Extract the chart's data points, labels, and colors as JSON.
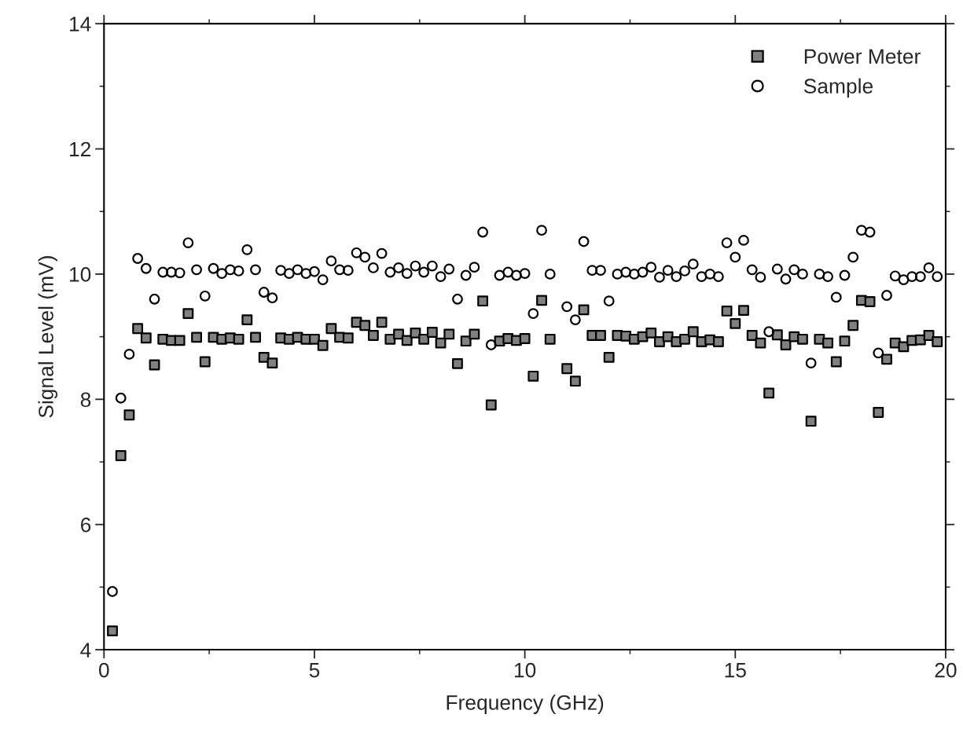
{
  "chart_data": {
    "type": "scatter",
    "xlabel": "Frequency (GHz)",
    "ylabel": "Signal Level (mV)",
    "x": [
      0.2,
      0.4,
      0.6,
      0.8,
      1.0,
      1.2,
      1.4,
      1.6,
      1.8,
      2.0,
      2.2,
      2.4,
      2.6,
      2.8,
      3.0,
      3.2,
      3.4,
      3.6,
      3.8,
      4.0,
      4.2,
      4.4,
      4.6,
      4.8,
      5.0,
      5.2,
      5.4,
      5.6,
      5.8,
      6.0,
      6.2,
      6.4,
      6.6,
      6.8,
      7.0,
      7.2,
      7.4,
      7.6,
      7.8,
      8.0,
      8.2,
      8.4,
      8.6,
      8.8,
      9.0,
      9.2,
      9.4,
      9.6,
      9.8,
      10.0,
      10.2,
      10.4,
      10.6,
      10.8,
      11.0,
      11.2,
      11.4,
      11.6,
      11.8,
      12.0,
      12.2,
      12.4,
      12.6,
      12.8,
      13.0,
      13.2,
      13.4,
      13.6,
      13.8,
      14.0,
      14.2,
      14.4,
      14.6,
      14.8,
      15.0,
      15.2,
      15.4,
      15.6,
      15.8,
      16.0,
      16.2,
      16.4,
      16.6,
      16.8,
      17.0,
      17.2,
      17.4,
      17.6,
      17.8,
      18.0,
      18.2,
      18.4,
      18.6,
      18.8,
      19.0,
      19.2,
      19.4,
      19.6,
      19.8
    ],
    "series": [
      {
        "name": "Power Meter",
        "color": "#808080",
        "marker": "square",
        "values": [
          4.3,
          7.1,
          7.75,
          9.13,
          8.98,
          8.55,
          8.96,
          8.94,
          8.94,
          9.37,
          8.99,
          8.6,
          8.99,
          8.96,
          8.98,
          8.96,
          9.27,
          8.99,
          8.67,
          8.58,
          8.98,
          8.96,
          8.99,
          8.96,
          8.96,
          8.86,
          9.13,
          8.99,
          8.98,
          9.23,
          9.18,
          9.02,
          9.23,
          8.96,
          9.04,
          8.94,
          9.06,
          8.96,
          9.07,
          8.9,
          9.04,
          8.57,
          8.93,
          9.04,
          9.57,
          7.91,
          8.93,
          8.97,
          8.94,
          8.97,
          8.37,
          9.58,
          8.96,
          null,
          8.49,
          8.29,
          9.43,
          9.02,
          9.02,
          8.67,
          9.02,
          9.01,
          8.96,
          9.0,
          9.06,
          8.92,
          9.0,
          8.92,
          8.96,
          9.08,
          8.92,
          8.95,
          8.92,
          9.41,
          9.21,
          9.42,
          9.02,
          8.9,
          8.1,
          9.03,
          8.87,
          9.0,
          8.96,
          7.65,
          8.96,
          8.9,
          8.6,
          8.93,
          9.18,
          9.58,
          9.56,
          7.79,
          8.64,
          8.9,
          8.84,
          8.94,
          8.95,
          9.02,
          8.92
        ]
      },
      {
        "name": "Sample",
        "color": "#000000",
        "marker": "circle",
        "values": [
          4.93,
          8.02,
          8.72,
          10.25,
          10.09,
          9.6,
          10.03,
          10.03,
          10.02,
          10.5,
          10.07,
          9.65,
          10.09,
          10.01,
          10.07,
          10.05,
          10.39,
          10.07,
          9.71,
          9.62,
          10.06,
          10.01,
          10.07,
          10.01,
          10.04,
          9.91,
          10.21,
          10.07,
          10.06,
          10.34,
          10.27,
          10.1,
          10.33,
          10.03,
          10.1,
          10.01,
          10.13,
          10.03,
          10.13,
          9.96,
          10.08,
          9.6,
          9.98,
          10.11,
          10.67,
          8.87,
          9.98,
          10.03,
          9.98,
          10.01,
          9.37,
          10.7,
          10.0,
          null,
          9.48,
          9.27,
          10.52,
          10.06,
          10.06,
          9.57,
          10.0,
          10.03,
          10.0,
          10.03,
          10.11,
          9.95,
          10.06,
          9.96,
          10.05,
          10.16,
          9.96,
          10.0,
          9.96,
          10.5,
          10.27,
          10.54,
          10.07,
          9.95,
          9.08,
          10.08,
          9.92,
          10.07,
          10.0,
          8.58,
          10.0,
          9.96,
          9.63,
          9.98,
          10.27,
          10.7,
          10.67,
          8.74,
          9.66,
          9.97,
          9.91,
          9.96,
          9.96,
          10.1,
          9.96
        ]
      }
    ],
    "xlim": [
      0,
      20
    ],
    "xticks": [
      0,
      5,
      10,
      15,
      20
    ],
    "ylim": [
      4,
      14
    ],
    "yticks": [
      4,
      6,
      8,
      10,
      12,
      14
    ],
    "legend": "top right"
  }
}
